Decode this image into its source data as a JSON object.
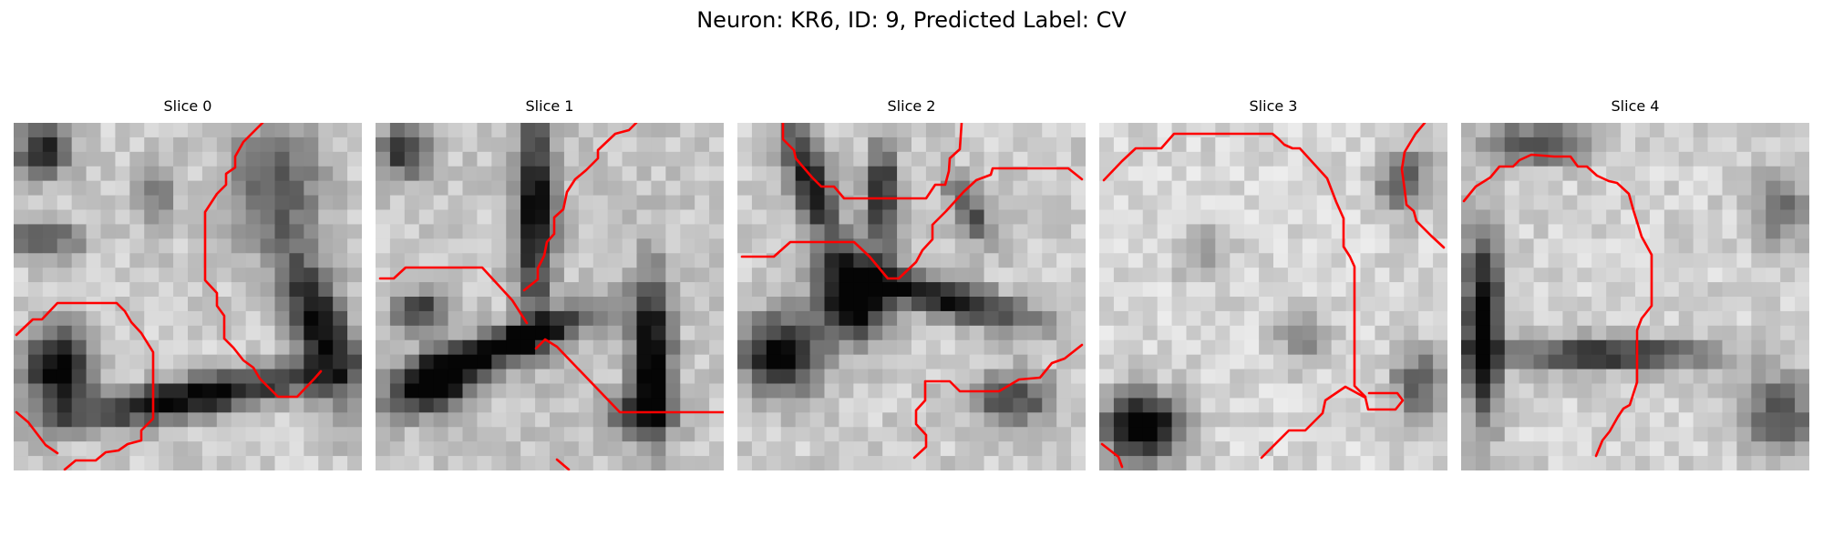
{
  "figure": {
    "title": "Neuron: KR6, ID: 9, Predicted Label: CV",
    "contour_color": "#ff0000"
  },
  "slices": [
    {
      "title": "Slice 0"
    },
    {
      "title": "Slice 1"
    },
    {
      "title": "Slice 2"
    },
    {
      "title": "Slice 3"
    },
    {
      "title": "Slice 4"
    }
  ]
}
